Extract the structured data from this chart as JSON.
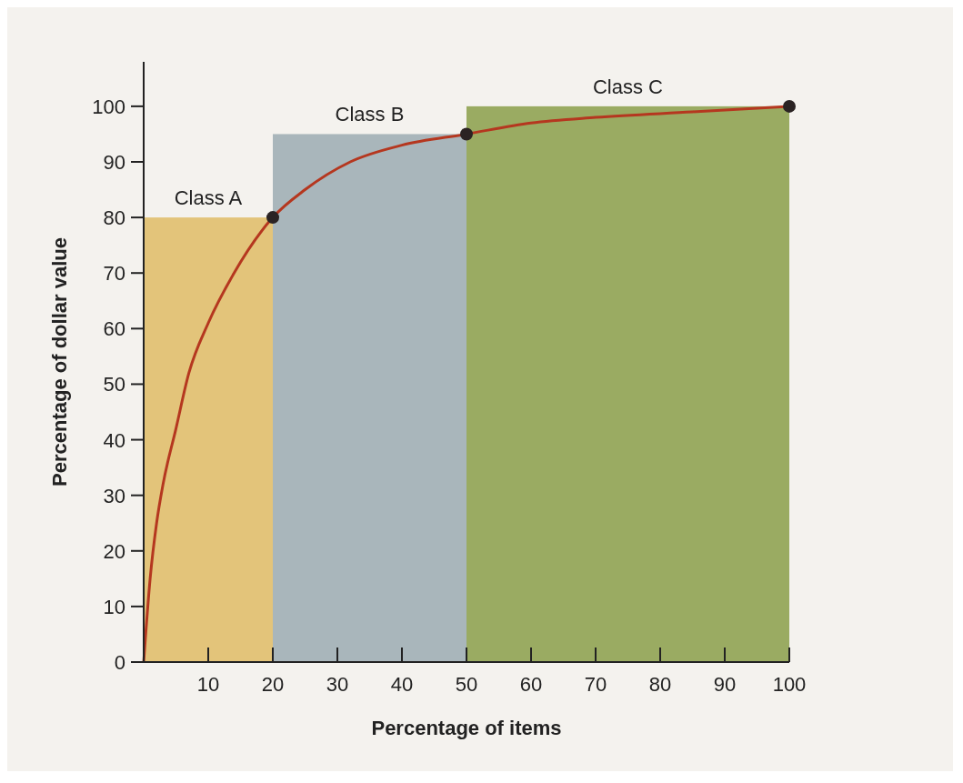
{
  "chart_data": {
    "type": "histogram",
    "xlabel": "Percentage of items",
    "ylabel": "Percentage of dollar value",
    "bins": [
      0,
      20,
      50,
      100
    ],
    "values": [
      80,
      95,
      100
    ],
    "colors": [
      "#e3c47a",
      "#a9b6bb",
      "#9aab62"
    ],
    "series": [
      {
        "type": "line",
        "color": "#b5371f",
        "x": [
          0,
          1,
          2,
          3,
          5,
          7,
          10,
          14,
          20,
          25,
          32,
          40,
          50,
          60,
          70,
          85,
          100
        ],
        "values": [
          0,
          15,
          25,
          32,
          42,
          52,
          61,
          70,
          80,
          85,
          90,
          93,
          95,
          97,
          98,
          99,
          100
        ]
      },
      {
        "type": "scatter",
        "color": "#2b2323",
        "x": [
          20,
          50,
          100
        ],
        "values": [
          80,
          95,
          100
        ]
      }
    ],
    "annotations": [
      "Class A",
      "Class B",
      "Class C"
    ],
    "xlim": [
      0,
      100
    ],
    "xticks": [
      {
        "value": 0,
        "label": null
      },
      10,
      20,
      30,
      40,
      50,
      60,
      70,
      80,
      90,
      100
    ],
    "ylim": [
      0,
      108
    ],
    "yticks": [
      0,
      10,
      20,
      30,
      40,
      50,
      60,
      70,
      80,
      90,
      100
    ],
    "grid": false
  }
}
